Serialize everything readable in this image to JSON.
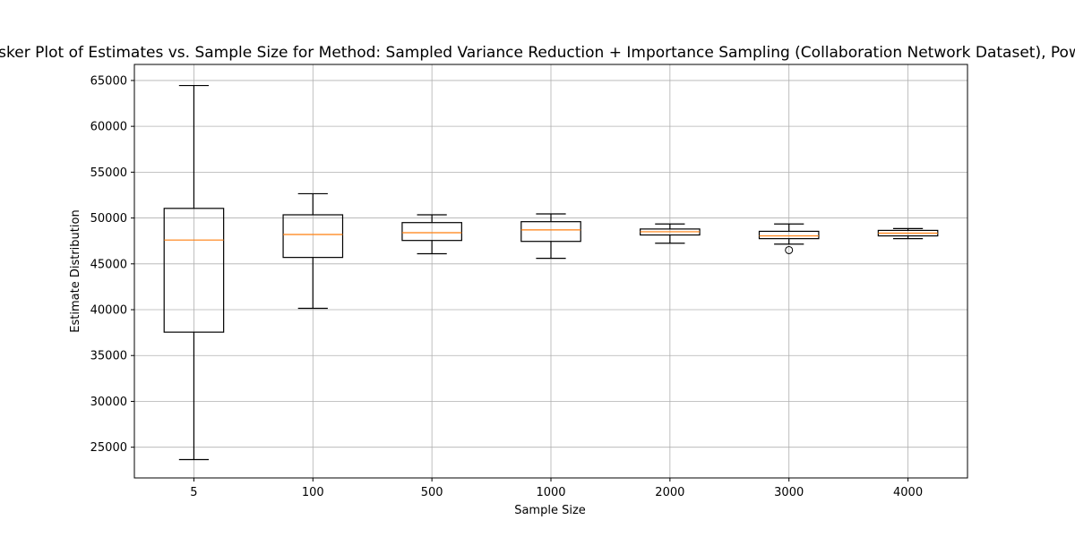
{
  "chart_data": {
    "type": "boxplot",
    "title": "hisker Plot of Estimates vs. Sample Size for Method: Sampled Variance Reduction + Importance Sampling (Collaboration Network Dataset), Powe",
    "xlabel": "Sample Size",
    "ylabel": "Estimate Distribution",
    "categories": [
      "5",
      "100",
      "500",
      "1000",
      "2000",
      "3000",
      "4000"
    ],
    "yticks": [
      25000,
      30000,
      35000,
      40000,
      45000,
      50000,
      55000,
      60000,
      65000
    ],
    "ytick_labels": [
      "25000",
      "30000",
      "35000",
      "40000",
      "45000",
      "50000",
      "55000",
      "60000",
      "65000"
    ],
    "ylim": [
      21650,
      66750
    ],
    "grid": true,
    "boxes": [
      {
        "category": "5",
        "whislo": 23650,
        "q1": 37550,
        "median": 47600,
        "q3": 51050,
        "whishi": 64450,
        "fliers": []
      },
      {
        "category": "100",
        "whislo": 40150,
        "q1": 45700,
        "median": 48200,
        "q3": 50350,
        "whishi": 52650,
        "fliers": []
      },
      {
        "category": "500",
        "whislo": 46100,
        "q1": 47550,
        "median": 48400,
        "q3": 49500,
        "whishi": 50350,
        "fliers": []
      },
      {
        "category": "1000",
        "whislo": 45600,
        "q1": 47450,
        "median": 48700,
        "q3": 49600,
        "whishi": 50450,
        "fliers": []
      },
      {
        "category": "2000",
        "whislo": 47250,
        "q1": 48150,
        "median": 48500,
        "q3": 48800,
        "whishi": 49350,
        "fliers": []
      },
      {
        "category": "3000",
        "whislo": 47150,
        "q1": 47750,
        "median": 48050,
        "q3": 48550,
        "whishi": 49350,
        "fliers": [
          46500
        ]
      },
      {
        "category": "4000",
        "whislo": 47750,
        "q1": 48050,
        "median": 48350,
        "q3": 48650,
        "whishi": 48850,
        "fliers": []
      }
    ],
    "colors": {
      "box": "#000000",
      "median": "#ff7f0e",
      "grid": "#b0b0b0"
    }
  }
}
